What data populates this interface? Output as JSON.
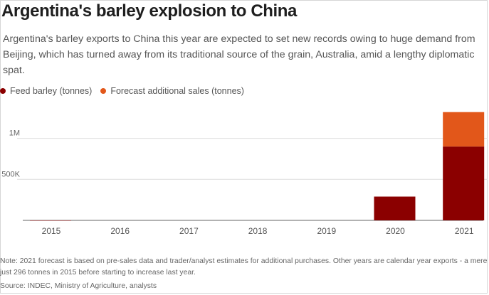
{
  "header": {
    "title": "Argentina's barley explosion to China",
    "subtitle": "Argentina's barley exports to China this year are expected to set new records owing to huge demand from Beijing, which has turned away from its traditional source of the grain, Australia, amid a lengthy diplomatic spat."
  },
  "footer": {
    "note": "Note: 2021 forecast is based on pre-sales data and trader/analyst estimates for additional purchases. Other years are calendar year exports - a mere just 296 tonnes in 2015 before starting to increase last year.",
    "source": "Source: INDEC, Ministry of Agriculture, analysts"
  },
  "colors": {
    "feed_barley": "#8b0000",
    "forecast": "#e2571a",
    "gridline": "#dddddd",
    "axis": "#666666"
  },
  "chart_data": {
    "type": "bar",
    "stacked": true,
    "categories": [
      "2015",
      "2016",
      "2017",
      "2018",
      "2019",
      "2020",
      "2021"
    ],
    "series": [
      {
        "name": "Feed barley (tonnes)",
        "values": [
          296,
          0,
          0,
          0,
          0,
          290000,
          900000
        ]
      },
      {
        "name": "Forecast additional sales (tonnes)",
        "values": [
          0,
          0,
          0,
          0,
          0,
          0,
          420000
        ]
      }
    ],
    "y_ticks": [
      {
        "value": 500000,
        "label": "500K"
      },
      {
        "value": 1000000,
        "label": "1M"
      }
    ],
    "ylim": [
      0,
      1400000
    ],
    "grid": true,
    "legend_position": "top-left"
  }
}
